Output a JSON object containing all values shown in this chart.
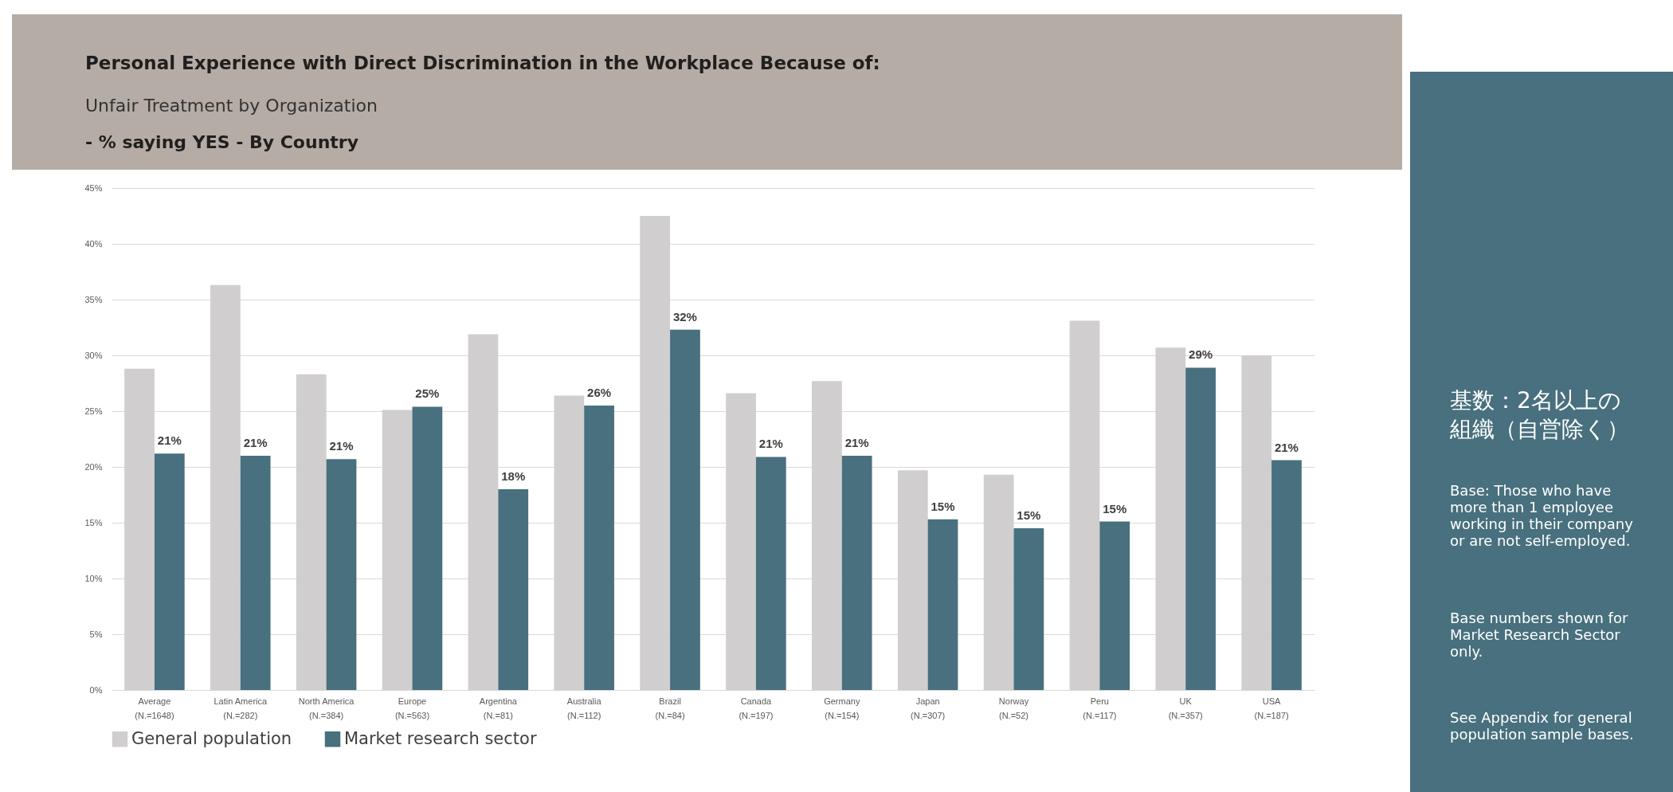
{
  "chart_data": {
    "type": "bar",
    "title": "Personal Experience with Direct Discrimination in the Workplace Because of:",
    "subtitle": "Unfair Treatment by Organization\n- % saying YES - By Country",
    "categories": [
      "Average (N.=1648)",
      "Latin America (N.=282)",
      "North America (N.=384)",
      "Europe (N.=563)",
      "Argentina (N.=81)",
      "Australia (N.=112)",
      "Brazil (N.=84)",
      "Canada (N.=197)",
      "Germany (N.=154)",
      "Japan (N.=307)",
      "Norway (N.=52)",
      "Peru (N.=117)",
      "UK (N.=357)",
      "USA (N.=187)"
    ],
    "series": [
      {
        "name": "General population",
        "color": "#d0cecf",
        "values": [
          28.8,
          36.3,
          28.3,
          25.1,
          31.9,
          26.4,
          42.5,
          26.6,
          27.7,
          19.7,
          19.3,
          33.1,
          30.7,
          30.0
        ]
      },
      {
        "name": "Market research sector",
        "color": "#48707e",
        "values": [
          21.2,
          21.0,
          20.7,
          25.4,
          18.0,
          25.5,
          32.3,
          20.9,
          21.0,
          15.3,
          14.5,
          15.1,
          28.9,
          20.6
        ],
        "value_labels": [
          "21%",
          "21%",
          "21%",
          "25%",
          "18%",
          "26%",
          "32%",
          "21%",
          "21%",
          "15%",
          "15%",
          "15%",
          "29%",
          "21%"
        ]
      }
    ],
    "ylim": [
      0,
      45
    ],
    "yticks": [
      {
        "value": 0,
        "label": "0%"
      },
      {
        "value": 5,
        "label": "5%"
      },
      {
        "value": 10,
        "label": "10%"
      },
      {
        "value": 15,
        "label": "15%"
      },
      {
        "value": 20,
        "label": "20%"
      },
      {
        "value": 25,
        "label": "25%"
      },
      {
        "value": 30,
        "label": "30%"
      },
      {
        "value": 35,
        "label": "35%"
      },
      {
        "value": 40,
        "label": "40%"
      },
      {
        "value": 45,
        "label": "45%"
      }
    ],
    "grid": "y",
    "legend": "bottom",
    "annotations": [
      "基数：2名以上の組織（自営除く）",
      "Base: Those who have more than 1 employee working in their company or are not self-employed.",
      "Base numbers shown for Market Research Sector only.",
      "See Appendix for general population sample bases."
    ]
  }
}
